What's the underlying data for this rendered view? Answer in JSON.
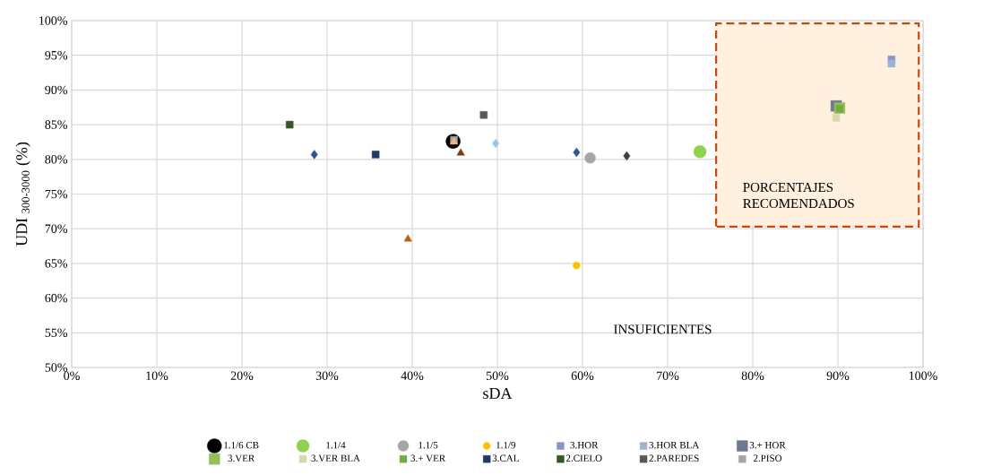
{
  "chart_data": {
    "type": "scatter",
    "xlabel": "sDA",
    "ylabel": "UDI $_{300-3000}$ (%)",
    "xlim": [
      0,
      100
    ],
    "ylim": [
      50,
      100
    ],
    "xticks": [
      {
        "value": 0,
        "label": "0%"
      },
      {
        "value": 10,
        "label": "10%"
      },
      {
        "value": 20,
        "label": "20%"
      },
      {
        "value": 30,
        "label": "30%"
      },
      {
        "value": 40,
        "label": "40%"
      },
      {
        "value": 50,
        "label": "50%"
      },
      {
        "value": 60,
        "label": "60%"
      },
      {
        "value": 70,
        "label": "70%"
      },
      {
        "value": 80,
        "label": "80%"
      },
      {
        "value": 90,
        "label": "90%"
      },
      {
        "value": 100,
        "label": "100%"
      }
    ],
    "yticks": [
      {
        "value": 50,
        "label": "50%"
      },
      {
        "value": 55,
        "label": "55%"
      },
      {
        "value": 60,
        "label": "60%"
      },
      {
        "value": 65,
        "label": "65%"
      },
      {
        "value": 70,
        "label": "70%"
      },
      {
        "value": 75,
        "label": "75%"
      },
      {
        "value": 80,
        "label": "80%"
      },
      {
        "value": 85,
        "label": "85%"
      },
      {
        "value": 90,
        "label": "90%"
      },
      {
        "value": 95,
        "label": "95%"
      },
      {
        "value": 100,
        "label": "100%"
      }
    ],
    "grid": true,
    "legend": "bottom",
    "series": [
      {
        "name": "1.1/6 CB",
        "color": "#000000",
        "marker": "circle",
        "x": [
          44.8
        ],
        "values": [
          82.6
        ]
      },
      {
        "name": "1.1/4",
        "color": "#92d050",
        "marker": "circle",
        "x": [
          73.8
        ],
        "values": [
          81.1
        ]
      },
      {
        "name": "1.1/5",
        "color": "#a6a6a6",
        "marker": "circle",
        "x": [
          60.9
        ],
        "values": [
          80.2
        ]
      },
      {
        "name": "1.1/9",
        "color": "#ffc000",
        "marker": "circle",
        "x": [
          59.3
        ],
        "values": [
          64.7
        ]
      },
      {
        "name": "3.HOR",
        "color": "#8896c4",
        "marker": "square",
        "x": [
          96.3
        ],
        "values": [
          94.4
        ]
      },
      {
        "name": "3.HOR BLA",
        "color": "#9fb4d4",
        "marker": "square",
        "x": [
          96.3
        ],
        "values": [
          93.8
        ]
      },
      {
        "name": "3.+ HOR",
        "color": "#6d7891",
        "marker": "square",
        "x": [
          89.8
        ],
        "values": [
          87.7
        ]
      },
      {
        "name": "3.VER",
        "color": "#9bbb59",
        "marker": "square",
        "x": [
          90.2
        ],
        "values": [
          87.4
        ]
      },
      {
        "name": "3.VER BLA",
        "color": "#d7d9a8",
        "marker": "square",
        "x": [
          89.8
        ],
        "values": [
          86.0
        ]
      },
      {
        "name": "3.+ VER",
        "color": "#70ad47",
        "marker": "square",
        "x": [
          90.2
        ],
        "values": [
          87.3
        ]
      },
      {
        "name": "3.CAL",
        "color": "#1f3864",
        "marker": "square",
        "x": [
          35.7
        ],
        "values": [
          80.7
        ]
      },
      {
        "name": "2.CIELO",
        "color": "#375623",
        "marker": "square",
        "x": [
          25.6
        ],
        "values": [
          85.0
        ]
      },
      {
        "name": "2.PAREDES",
        "color": "#595959",
        "marker": "square",
        "x": [
          48.4
        ],
        "values": [
          86.4
        ]
      },
      {
        "name": "2.PISO",
        "color": "#a5a5a5",
        "marker": "square",
        "x": [
          44.9
        ],
        "values": [
          82.8
        ]
      },
      {
        "color": "#f4b183",
        "marker": "triangle",
        "x": [
          44.9
        ],
        "values": [
          82.5
        ]
      },
      {
        "color": "#2f5597",
        "marker": "diamond",
        "x": [
          28.5,
          59.3
        ],
        "values": [
          80.7,
          81.0
        ]
      },
      {
        "color": "#9dc3e6",
        "marker": "diamond",
        "x": [
          49.8
        ],
        "values": [
          82.3
        ]
      },
      {
        "color": "#404040",
        "marker": "diamond",
        "x": [
          65.2
        ],
        "values": [
          80.5
        ]
      },
      {
        "color": "#843c0c",
        "marker": "triangle",
        "x": [
          45.7
        ],
        "values": [
          80.9
        ]
      },
      {
        "color": "#c55a11",
        "marker": "triangle",
        "x": [
          39.5
        ],
        "values": [
          68.5
        ]
      }
    ],
    "annotations": [
      "PORCENTAJES RECOMENDADOS",
      "INSUFICIENTES"
    ]
  }
}
